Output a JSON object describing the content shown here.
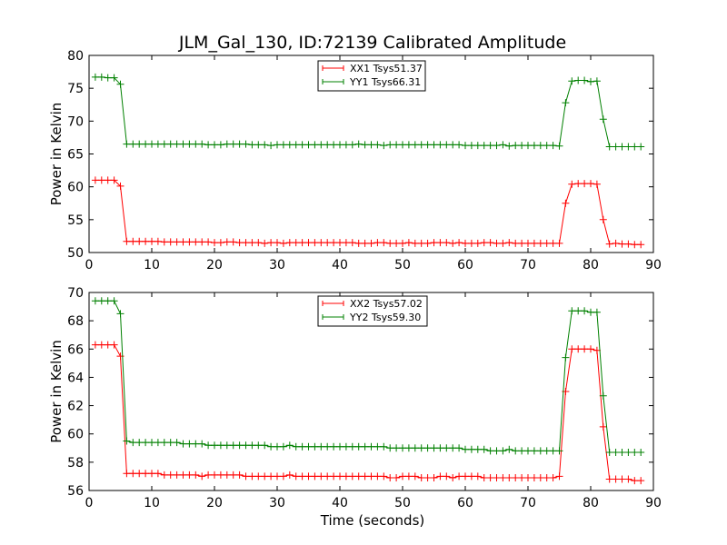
{
  "figure": {
    "title": "JLM_Gal_130, ID:72139 Calibrated Amplitude",
    "xlabel": "Time (seconds)"
  },
  "chart_data": [
    {
      "type": "line",
      "title": "JLM_Gal_130, ID:72139 Calibrated Amplitude",
      "xlabel": "",
      "ylabel": "Power in Kelvin",
      "xlim": [
        0,
        90
      ],
      "ylim": [
        50,
        80
      ],
      "xticks": [
        0,
        10,
        20,
        30,
        40,
        50,
        60,
        70,
        80,
        90
      ],
      "yticks": [
        50,
        55,
        60,
        65,
        70,
        75,
        80
      ],
      "grid": false,
      "legend_position": "top-center",
      "x": [
        1,
        2,
        3,
        4,
        5,
        6,
        7,
        8,
        9,
        10,
        11,
        12,
        13,
        14,
        15,
        16,
        17,
        18,
        19,
        20,
        21,
        22,
        23,
        24,
        25,
        26,
        27,
        28,
        29,
        30,
        31,
        32,
        33,
        34,
        35,
        36,
        37,
        38,
        39,
        40,
        41,
        42,
        43,
        44,
        45,
        46,
        47,
        48,
        49,
        50,
        51,
        52,
        53,
        54,
        55,
        56,
        57,
        58,
        59,
        60,
        61,
        62,
        63,
        64,
        65,
        66,
        67,
        68,
        69,
        70,
        71,
        72,
        73,
        74,
        75,
        76,
        77,
        78,
        79,
        80,
        81,
        82,
        83,
        84,
        85,
        86,
        87,
        88
      ],
      "series": [
        {
          "name": "XX1 Tsys51.37",
          "color": "#ff0000",
          "values": [
            61.0,
            61.0,
            61.0,
            61.0,
            60.1,
            51.7,
            51.7,
            51.7,
            51.7,
            51.7,
            51.7,
            51.6,
            51.6,
            51.6,
            51.6,
            51.6,
            51.6,
            51.6,
            51.6,
            51.5,
            51.5,
            51.6,
            51.6,
            51.5,
            51.5,
            51.5,
            51.5,
            51.4,
            51.5,
            51.5,
            51.4,
            51.5,
            51.5,
            51.5,
            51.5,
            51.5,
            51.5,
            51.5,
            51.5,
            51.5,
            51.5,
            51.5,
            51.4,
            51.4,
            51.4,
            51.5,
            51.5,
            51.4,
            51.4,
            51.4,
            51.5,
            51.4,
            51.4,
            51.4,
            51.5,
            51.5,
            51.5,
            51.4,
            51.5,
            51.4,
            51.4,
            51.4,
            51.5,
            51.5,
            51.4,
            51.4,
            51.5,
            51.4,
            51.4,
            51.4,
            51.4,
            51.4,
            51.4,
            51.4,
            51.4,
            57.5,
            60.4,
            60.5,
            60.5,
            60.5,
            60.4,
            55.0,
            51.3,
            51.4,
            51.3,
            51.3,
            51.2,
            51.2
          ]
        },
        {
          "name": "YY1 Tsys66.31",
          "color": "#008000",
          "values": [
            76.7,
            76.7,
            76.6,
            76.6,
            75.6,
            66.5,
            66.5,
            66.5,
            66.5,
            66.5,
            66.5,
            66.5,
            66.5,
            66.5,
            66.5,
            66.5,
            66.5,
            66.5,
            66.4,
            66.4,
            66.4,
            66.5,
            66.5,
            66.5,
            66.5,
            66.4,
            66.4,
            66.4,
            66.3,
            66.4,
            66.4,
            66.4,
            66.4,
            66.4,
            66.4,
            66.4,
            66.4,
            66.4,
            66.4,
            66.4,
            66.4,
            66.4,
            66.5,
            66.4,
            66.4,
            66.4,
            66.3,
            66.4,
            66.4,
            66.4,
            66.4,
            66.4,
            66.4,
            66.4,
            66.4,
            66.4,
            66.4,
            66.4,
            66.4,
            66.3,
            66.3,
            66.3,
            66.3,
            66.3,
            66.3,
            66.4,
            66.2,
            66.3,
            66.3,
            66.3,
            66.3,
            66.3,
            66.3,
            66.3,
            66.2,
            72.8,
            76.1,
            76.2,
            76.2,
            76.0,
            76.1,
            70.3,
            66.1,
            66.1,
            66.1,
            66.1,
            66.1,
            66.1
          ]
        }
      ]
    },
    {
      "type": "line",
      "title": "",
      "xlabel": "Time (seconds)",
      "ylabel": "Power in Kelvin",
      "xlim": [
        0,
        90
      ],
      "ylim": [
        56,
        70
      ],
      "xticks": [
        0,
        10,
        20,
        30,
        40,
        50,
        60,
        70,
        80,
        90
      ],
      "yticks": [
        56,
        58,
        60,
        62,
        64,
        66,
        68,
        70
      ],
      "grid": false,
      "legend_position": "top-center",
      "x": [
        1,
        2,
        3,
        4,
        5,
        6,
        7,
        8,
        9,
        10,
        11,
        12,
        13,
        14,
        15,
        16,
        17,
        18,
        19,
        20,
        21,
        22,
        23,
        24,
        25,
        26,
        27,
        28,
        29,
        30,
        31,
        32,
        33,
        34,
        35,
        36,
        37,
        38,
        39,
        40,
        41,
        42,
        43,
        44,
        45,
        46,
        47,
        48,
        49,
        50,
        51,
        52,
        53,
        54,
        55,
        56,
        57,
        58,
        59,
        60,
        61,
        62,
        63,
        64,
        65,
        66,
        67,
        68,
        69,
        70,
        71,
        72,
        73,
        74,
        75,
        76,
        77,
        78,
        79,
        80,
        81,
        82,
        83,
        84,
        85,
        86,
        87,
        88
      ],
      "series": [
        {
          "name": "XX2 Tsys57.02",
          "color": "#ff0000",
          "values": [
            66.3,
            66.3,
            66.3,
            66.3,
            65.5,
            57.2,
            57.2,
            57.2,
            57.2,
            57.2,
            57.2,
            57.1,
            57.1,
            57.1,
            57.1,
            57.1,
            57.1,
            57.0,
            57.1,
            57.1,
            57.1,
            57.1,
            57.1,
            57.1,
            57.0,
            57.0,
            57.0,
            57.0,
            57.0,
            57.0,
            57.0,
            57.1,
            57.0,
            57.0,
            57.0,
            57.0,
            57.0,
            57.0,
            57.0,
            57.0,
            57.0,
            57.0,
            57.0,
            57.0,
            57.0,
            57.0,
            57.0,
            56.9,
            56.9,
            57.0,
            57.0,
            57.0,
            56.9,
            56.9,
            56.9,
            57.0,
            57.0,
            56.9,
            57.0,
            57.0,
            57.0,
            57.0,
            56.9,
            56.9,
            56.9,
            56.9,
            56.9,
            56.9,
            56.9,
            56.9,
            56.9,
            56.9,
            56.9,
            56.9,
            57.0,
            63.0,
            66.0,
            66.0,
            66.0,
            66.0,
            65.9,
            60.5,
            56.8,
            56.8,
            56.8,
            56.8,
            56.7,
            56.7
          ]
        },
        {
          "name": "YY2 Tsys59.30",
          "color": "#008000",
          "values": [
            69.4,
            69.4,
            69.4,
            69.4,
            68.5,
            59.5,
            59.4,
            59.4,
            59.4,
            59.4,
            59.4,
            59.4,
            59.4,
            59.4,
            59.3,
            59.3,
            59.3,
            59.3,
            59.2,
            59.2,
            59.2,
            59.2,
            59.2,
            59.2,
            59.2,
            59.2,
            59.2,
            59.2,
            59.1,
            59.1,
            59.1,
            59.2,
            59.1,
            59.1,
            59.1,
            59.1,
            59.1,
            59.1,
            59.1,
            59.1,
            59.1,
            59.1,
            59.1,
            59.1,
            59.1,
            59.1,
            59.1,
            59.0,
            59.0,
            59.0,
            59.0,
            59.0,
            59.0,
            59.0,
            59.0,
            59.0,
            59.0,
            59.0,
            59.0,
            58.9,
            58.9,
            58.9,
            58.9,
            58.8,
            58.8,
            58.8,
            58.9,
            58.8,
            58.8,
            58.8,
            58.8,
            58.8,
            58.8,
            58.8,
            58.8,
            65.4,
            68.7,
            68.7,
            68.7,
            68.6,
            68.6,
            62.7,
            58.7,
            58.7,
            58.7,
            58.7,
            58.7,
            58.7
          ]
        }
      ]
    }
  ]
}
